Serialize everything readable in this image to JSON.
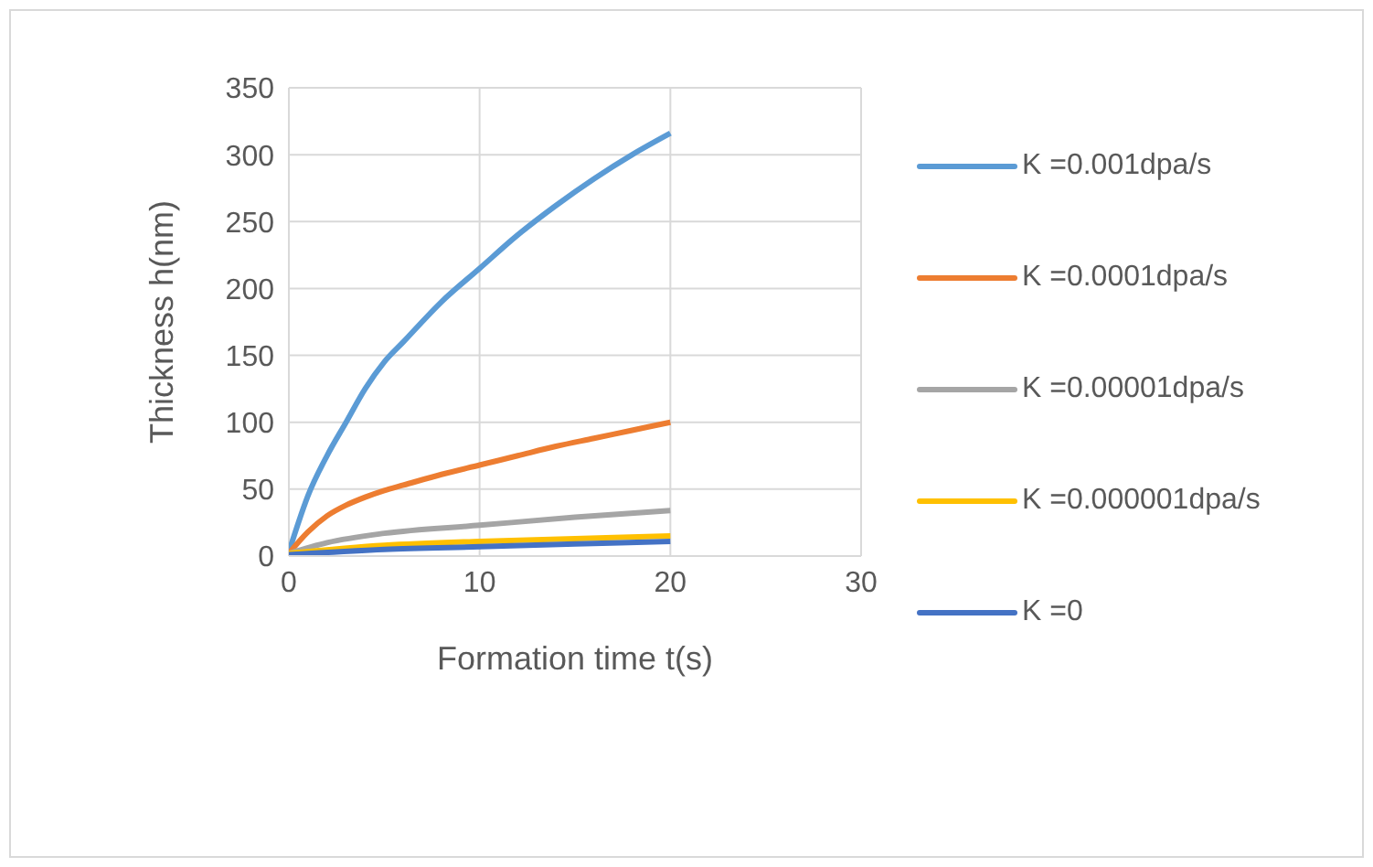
{
  "chart_data": {
    "type": "line",
    "xlabel": "Formation time t(s)",
    "ylabel": "Thickness h(nm)",
    "xlim": [
      0,
      30
    ],
    "xticks": [
      0,
      10,
      20,
      30
    ],
    "ylim": [
      0,
      350
    ],
    "yticks": [
      0,
      50,
      100,
      150,
      200,
      250,
      300,
      350
    ],
    "grid": true,
    "legend": "right",
    "marker": "none",
    "line_style": "solid",
    "series": [
      {
        "name": "K =0.001dpa/s",
        "color": "#5b9bd5",
        "x": [
          0,
          0.5,
          1,
          2,
          3,
          4,
          5,
          6,
          8,
          10,
          12,
          14,
          16,
          18,
          20
        ],
        "values": [
          3,
          25,
          45,
          75,
          100,
          125,
          145,
          160,
          190,
          215,
          240,
          262,
          282,
          300,
          316
        ]
      },
      {
        "name": "K =0.0001dpa/s",
        "color": "#ed7d31",
        "x": [
          0,
          1,
          2,
          3,
          4,
          5,
          6,
          8,
          10,
          12,
          14,
          16,
          18,
          20
        ],
        "values": [
          2,
          18,
          30,
          38,
          44,
          49,
          53,
          61,
          68,
          75,
          82,
          88,
          94,
          100
        ]
      },
      {
        "name": "K =0.00001dpa/s",
        "color": "#a5a5a5",
        "x": [
          0,
          2,
          5,
          10,
          15,
          20
        ],
        "values": [
          2,
          10,
          17,
          23,
          29,
          34
        ]
      },
      {
        "name": "K =0.000001dpa/s",
        "color": "#ffc000",
        "x": [
          0,
          5,
          10,
          15,
          20
        ],
        "values": [
          2,
          8,
          11,
          13,
          15
        ]
      },
      {
        "name": "K =0",
        "color": "#4472c4",
        "x": [
          0,
          5,
          10,
          15,
          20
        ],
        "values": [
          1,
          5,
          7,
          9,
          11
        ]
      }
    ]
  }
}
